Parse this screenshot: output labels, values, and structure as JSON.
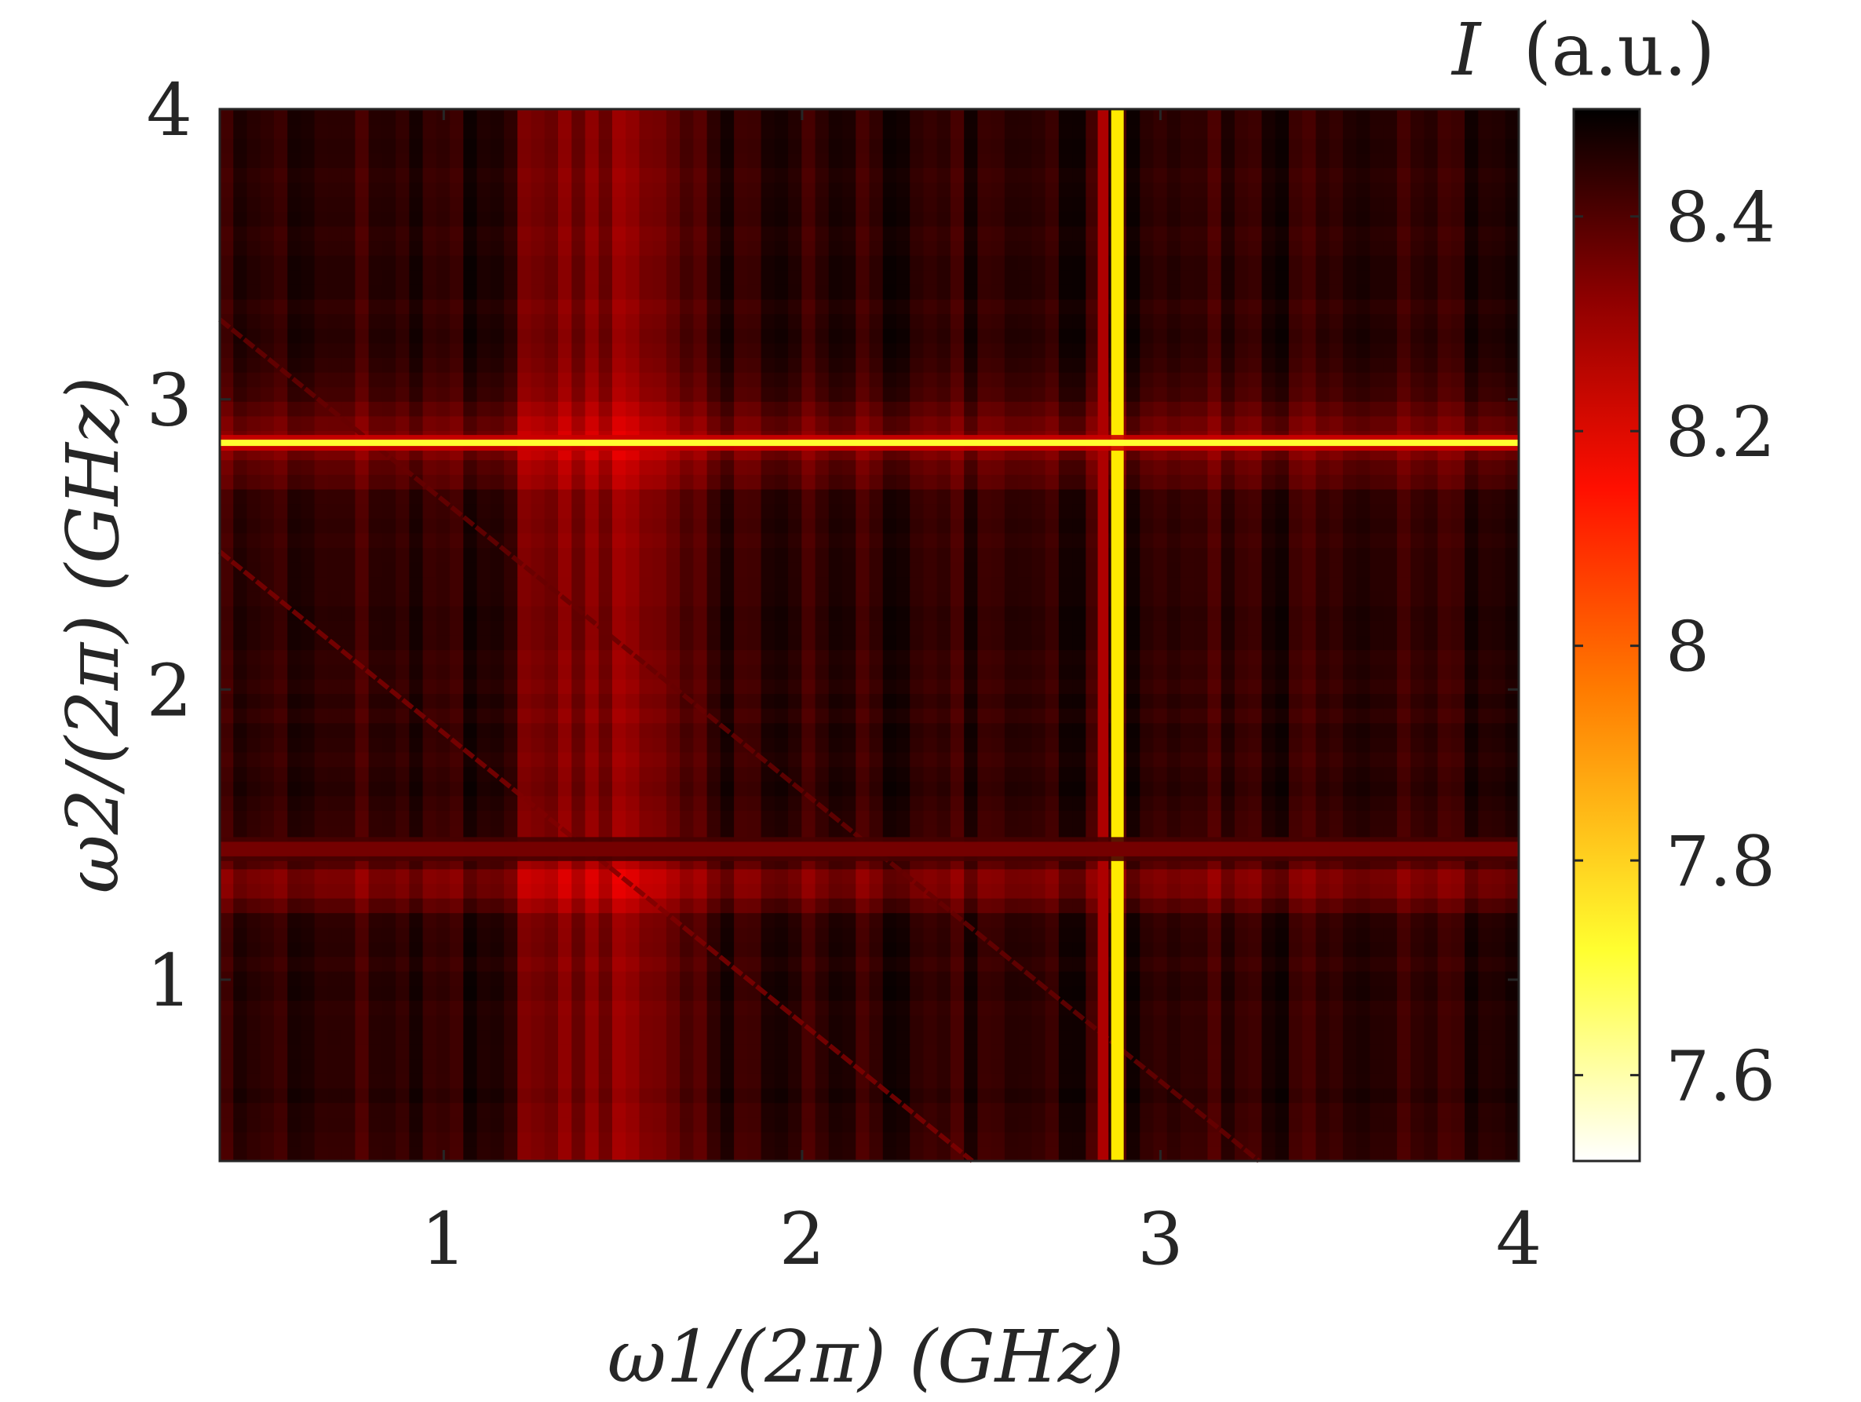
{
  "chart_data": {
    "type": "heatmap",
    "title": "",
    "xlabel": "ω1/(2π) (GHz)",
    "ylabel": "ω2/(2π) (GHz)",
    "xlim": [
      0.375,
      4.0
    ],
    "ylim": [
      0.375,
      4.0
    ],
    "x_ticks": [
      1,
      2,
      3,
      4
    ],
    "x_tick_labels": [
      "1",
      "2",
      "3",
      "4"
    ],
    "y_ticks": [
      1,
      2,
      3,
      4
    ],
    "y_tick_labels": [
      "1",
      "2",
      "3",
      "4"
    ],
    "colorbar": {
      "label": "I (a.u.)",
      "label_symbol": "I",
      "label_unit": "(a.u.)",
      "range": [
        7.52,
        8.5
      ],
      "ticks": [
        7.6,
        7.8,
        8.0,
        8.2,
        8.4
      ],
      "tick_labels": [
        "7.6",
        "7.8",
        "8",
        "8.2",
        "8.4"
      ],
      "colormap": "hot",
      "colormap_stops": [
        "#000000",
        "#ff0000",
        "#ffff00",
        "#ffffff"
      ]
    },
    "background_level": 8.42,
    "features": {
      "vertical_lines": [
        {
          "x": 2.88,
          "width": 0.035,
          "depth": 0.72
        },
        {
          "x": 2.84,
          "width": 0.03,
          "depth": 0.22
        },
        {
          "x": 1.5,
          "width": 0.12,
          "depth": 0.16
        },
        {
          "x": 1.28,
          "width": 0.06,
          "depth": 0.12
        }
      ],
      "horizontal_lines": [
        {
          "y": 2.85,
          "width": 0.02,
          "depth": 0.78
        },
        {
          "y": 2.85,
          "width": 0.1,
          "depth": 0.14
        },
        {
          "y": 1.33,
          "width": 0.06,
          "depth": 0.15
        },
        {
          "y": 1.45,
          "width": 0.05,
          "depth": 0.12
        }
      ],
      "diagonal_lines": [
        {
          "sum": 2.85,
          "depth": 0.14
        },
        {
          "sum": 3.65,
          "depth": 0.1
        }
      ]
    }
  }
}
